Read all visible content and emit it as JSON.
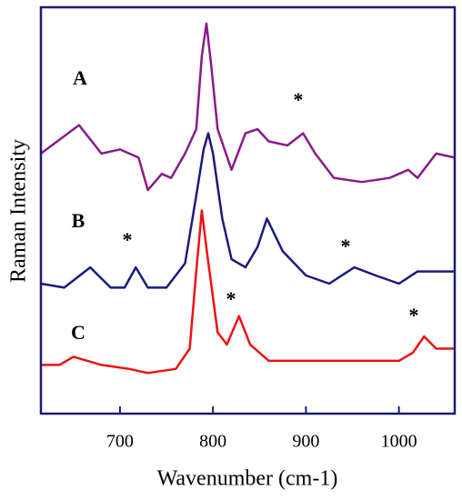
{
  "chart_data": {
    "type": "line",
    "xlabel": "Wavenumber (cm-1)",
    "ylabel": "Raman Intensity",
    "xlim": [
      615,
      1060
    ],
    "xticks": [
      700,
      800,
      900,
      1000
    ],
    "ylim": [
      0,
      100
    ],
    "annotations": [
      "A",
      "B",
      "C",
      "*",
      "*",
      "*",
      "*",
      "*"
    ],
    "series": [
      {
        "name": "A",
        "color": "#8a1a8a",
        "x": [
          615,
          656,
          680,
          700,
          720,
          730,
          745,
          755,
          770,
          782,
          788,
          793,
          798,
          805,
          820,
          835,
          848,
          860,
          880,
          897,
          910,
          930,
          960,
          990,
          1010,
          1020,
          1040,
          1060
        ],
        "values": [
          64,
          71,
          64,
          65,
          63,
          55,
          59,
          58,
          64,
          70,
          88,
          96,
          86,
          70,
          60,
          69,
          70,
          67,
          66,
          69,
          64,
          58,
          57,
          58,
          60,
          58,
          64,
          63
        ]
      },
      {
        "name": "B",
        "color": "#1a1a80",
        "x": [
          615,
          640,
          668,
          690,
          705,
          717,
          730,
          750,
          770,
          783,
          790,
          795,
          800,
          810,
          820,
          835,
          848,
          858,
          875,
          900,
          925,
          952,
          975,
          1000,
          1020,
          1040,
          1060
        ],
        "values": [
          32,
          31,
          36,
          31,
          31,
          36,
          31,
          31,
          37,
          55,
          65,
          69,
          64,
          48,
          38,
          36,
          41,
          48,
          40,
          34,
          32,
          36,
          34,
          32,
          35,
          35,
          35
        ]
      },
      {
        "name": "C",
        "color": "#ee1111",
        "x": [
          615,
          635,
          650,
          680,
          710,
          730,
          760,
          775,
          782,
          788,
          794,
          805,
          815,
          828,
          840,
          860,
          900,
          1000,
          1015,
          1027,
          1040,
          1060
        ],
        "values": [
          12,
          12,
          14,
          12,
          11,
          10,
          11,
          16,
          35,
          50,
          39,
          20,
          17,
          24,
          17,
          13,
          13,
          13,
          15,
          19,
          16,
          16
        ]
      }
    ]
  }
}
